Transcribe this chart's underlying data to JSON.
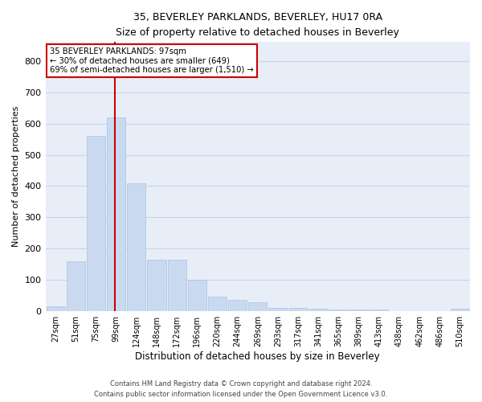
{
  "title": "35, BEVERLEY PARKLANDS, BEVERLEY, HU17 0RA",
  "subtitle": "Size of property relative to detached houses in Beverley",
  "xlabel": "Distribution of detached houses by size in Beverley",
  "ylabel": "Number of detached properties",
  "bar_labels": [
    "27sqm",
    "51sqm",
    "75sqm",
    "99sqm",
    "124sqm",
    "148sqm",
    "172sqm",
    "196sqm",
    "220sqm",
    "244sqm",
    "269sqm",
    "293sqm",
    "317sqm",
    "341sqm",
    "365sqm",
    "389sqm",
    "413sqm",
    "438sqm",
    "462sqm",
    "486sqm",
    "510sqm"
  ],
  "bar_heights": [
    15,
    160,
    560,
    620,
    410,
    165,
    165,
    100,
    47,
    37,
    30,
    12,
    10,
    7,
    5,
    5,
    5,
    0,
    0,
    0,
    7
  ],
  "bar_color": "#c9daf0",
  "bar_edgecolor": "#a8c4e0",
  "grid_color": "#c8d4e8",
  "background_color": "#e8eef8",
  "vline_color": "#cc0000",
  "annotation_text": "35 BEVERLEY PARKLANDS: 97sqm\n← 30% of detached houses are smaller (649)\n69% of semi-detached houses are larger (1,510) →",
  "annotation_box_color": "#ffffff",
  "annotation_box_edgecolor": "#cc0000",
  "yticks": [
    0,
    100,
    200,
    300,
    400,
    500,
    600,
    700,
    800
  ],
  "ylim": [
    0,
    860
  ],
  "footer_line1": "Contains HM Land Registry data © Crown copyright and database right 2024.",
  "footer_line2": "Contains public sector information licensed under the Open Government Licence v3.0."
}
